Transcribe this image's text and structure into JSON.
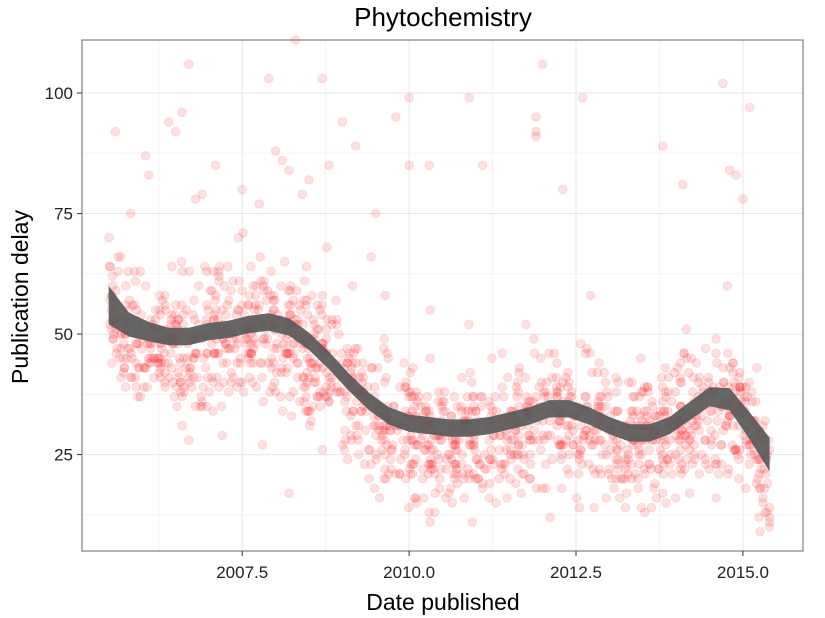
{
  "chart_data": {
    "type": "scatter",
    "title": "Phytochemistry",
    "xlabel": "Date published",
    "ylabel": "Publication delay",
    "xlim": [
      2005.1,
      2015.9
    ],
    "ylim": [
      5,
      111
    ],
    "x_ticks": [
      2007.5,
      2010.0,
      2012.5,
      2015.0
    ],
    "x_tick_labels": [
      "2007.5",
      "2010.0",
      "2012.5",
      "2015.0"
    ],
    "y_ticks": [
      25,
      50,
      75,
      100
    ],
    "y_tick_labels": [
      "25",
      "50",
      "75",
      "100"
    ],
    "grid": true,
    "point_color": "#ff0000",
    "point_opacity": 0.12,
    "smooth_color": "#595959",
    "series": [
      {
        "type": "scatter",
        "points": [
          [
            2005.6,
            92
          ],
          [
            2005.9,
            61
          ],
          [
            2006.1,
            83
          ],
          [
            2006.4,
            94
          ],
          [
            2006.5,
            92
          ],
          [
            2006.6,
            96
          ],
          [
            2006.7,
            106
          ],
          [
            2006.8,
            78
          ],
          [
            2006.9,
            79
          ],
          [
            2007.1,
            85
          ],
          [
            2007.5,
            80
          ],
          [
            2007.9,
            103
          ],
          [
            2008.0,
            88
          ],
          [
            2008.1,
            86
          ],
          [
            2008.2,
            84
          ],
          [
            2008.3,
            111
          ],
          [
            2008.4,
            79
          ],
          [
            2008.5,
            82
          ],
          [
            2008.7,
            103
          ],
          [
            2008.8,
            85
          ],
          [
            2009.0,
            94
          ],
          [
            2009.2,
            89
          ],
          [
            2009.5,
            75
          ],
          [
            2009.8,
            95
          ],
          [
            2010.0,
            85
          ],
          [
            2010.0,
            99
          ],
          [
            2010.3,
            85
          ],
          [
            2010.9,
            99
          ],
          [
            2011.1,
            85
          ],
          [
            2011.9,
            92
          ],
          [
            2011.9,
            91
          ],
          [
            2011.9,
            95
          ],
          [
            2012.0,
            106
          ],
          [
            2012.3,
            80
          ],
          [
            2012.6,
            99
          ],
          [
            2013.8,
            89
          ],
          [
            2014.1,
            81
          ],
          [
            2014.7,
            102
          ],
          [
            2014.8,
            84
          ],
          [
            2014.9,
            83
          ],
          [
            2015.0,
            78
          ],
          [
            2015.1,
            97
          ],
          [
            2008.2,
            17
          ],
          [
            2008.7,
            26
          ],
          [
            2007.2,
            29
          ],
          [
            2006.8,
            35
          ],
          [
            2006.7,
            28
          ],
          [
            2006.6,
            31
          ],
          [
            2007.8,
            27
          ],
          [
            2009.4,
            20
          ],
          [
            2010.3,
            13
          ],
          [
            2011.2,
            16
          ],
          [
            2011.3,
            15
          ],
          [
            2012.0,
            18
          ],
          [
            2014.6,
            16
          ],
          [
            2015.3,
            15
          ],
          [
            2015.4,
            12
          ],
          [
            2015.4,
            10
          ],
          [
            2015.4,
            14
          ],
          [
            2015.3,
            16
          ],
          [
            2015.2,
            19
          ],
          [
            2015.4,
            11
          ]
        ]
      },
      {
        "type": "smooth",
        "name": "",
        "x": [
          2005.5,
          2005.8,
          2006.1,
          2006.4,
          2006.7,
          2007.0,
          2007.3,
          2007.6,
          2007.9,
          2008.2,
          2008.5,
          2008.8,
          2009.1,
          2009.4,
          2009.7,
          2010.0,
          2010.3,
          2010.6,
          2010.9,
          2011.2,
          2011.5,
          2011.8,
          2012.1,
          2012.4,
          2012.7,
          2013.0,
          2013.3,
          2013.6,
          2013.9,
          2014.2,
          2014.5,
          2014.8,
          2015.1,
          2015.4
        ],
        "y": [
          56,
          52,
          50.5,
          49.5,
          49.5,
          50.5,
          51,
          52,
          52.5,
          51.5,
          48.5,
          44.5,
          40,
          36,
          33,
          31.5,
          31,
          30.5,
          30.5,
          31,
          32,
          33,
          34.5,
          34.5,
          33,
          31,
          29.5,
          29.5,
          31,
          34,
          37,
          36.5,
          31,
          25
        ],
        "band": [
          4,
          2.5,
          2,
          1.8,
          1.8,
          1.8,
          1.8,
          1.8,
          1.8,
          1.8,
          1.8,
          1.8,
          1.8,
          1.8,
          1.8,
          1.8,
          1.8,
          1.8,
          1.8,
          1.8,
          1.8,
          1.8,
          1.8,
          1.8,
          1.8,
          1.8,
          1.8,
          1.8,
          1.8,
          1.9,
          2,
          2.3,
          2.8,
          3.5
        ]
      }
    ]
  }
}
